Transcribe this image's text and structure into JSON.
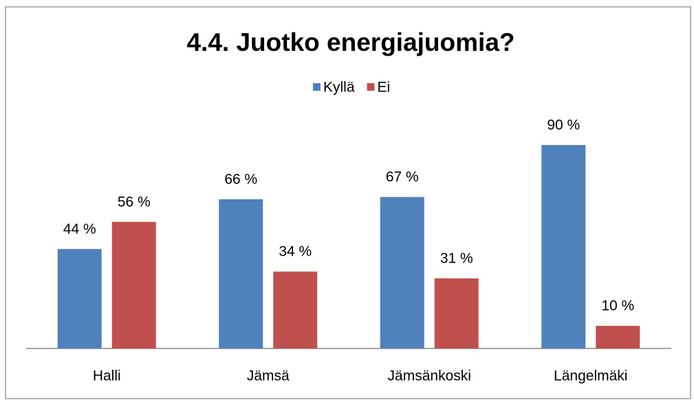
{
  "chart_data": {
    "type": "bar",
    "title": "4.4. Juotko energiajuomia?",
    "categories": [
      "Halli",
      "Jämsä",
      "Jämsänkoski",
      "Längelmäki"
    ],
    "series": [
      {
        "name": "Kyllä",
        "color": "#4f81bd",
        "values": [
          44,
          66,
          67,
          90
        ],
        "value_labels": [
          "44 %",
          "66 %",
          "67 %",
          "90 %"
        ]
      },
      {
        "name": "Ei",
        "color": "#c0504d",
        "values": [
          56,
          34,
          31,
          10
        ],
        "value_labels": [
          "56 %",
          "34 %",
          "31 %",
          "10 %"
        ]
      }
    ],
    "legend": "top"
  }
}
